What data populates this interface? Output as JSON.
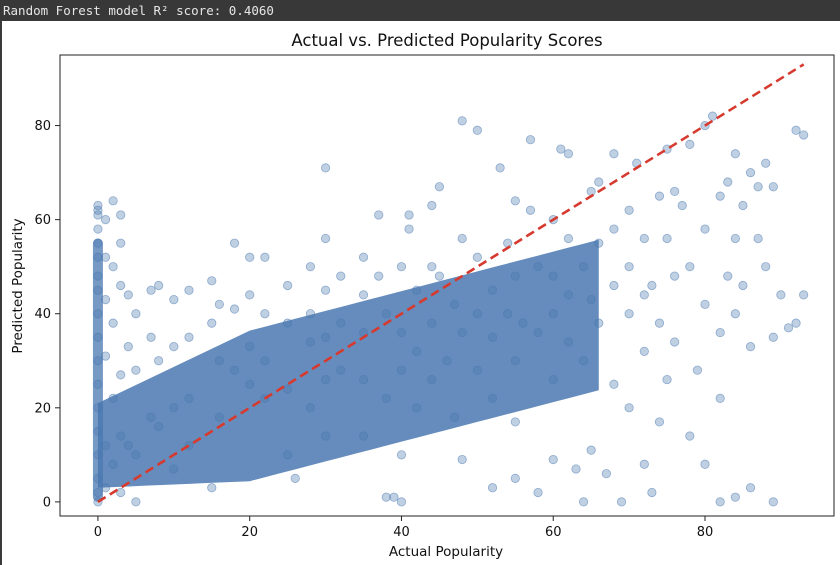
{
  "console": {
    "output_text": "Random Forest model R² score: 0.4060"
  },
  "colors": {
    "points": "#4a78b0",
    "reference_line": "#d63a2f",
    "console_bg": "#383838",
    "console_text": "#e6e6e6"
  },
  "chart_data": {
    "type": "scatter",
    "title": "Actual vs. Predicted Popularity Scores",
    "xlabel": "Actual Popularity",
    "ylabel": "Predicted Popularity",
    "xlim": [
      -5,
      97
    ],
    "ylim": [
      -3,
      95
    ],
    "xticks": [
      0,
      20,
      40,
      60,
      80
    ],
    "yticks": [
      0,
      20,
      40,
      60,
      80
    ],
    "grid": false,
    "point_alpha": 0.35,
    "reference_line": {
      "style": "dashed",
      "from": [
        0,
        0
      ],
      "to": [
        93,
        93
      ]
    },
    "series": [
      {
        "points": [
          [
            0,
            63
          ],
          [
            0,
            62
          ],
          [
            0,
            61
          ],
          [
            0,
            58
          ],
          [
            0,
            55
          ],
          [
            0,
            52
          ],
          [
            0,
            48
          ],
          [
            0,
            45
          ],
          [
            0,
            40
          ],
          [
            0,
            35
          ],
          [
            0,
            30
          ],
          [
            0,
            25
          ],
          [
            0,
            20
          ],
          [
            0,
            15
          ],
          [
            0,
            10
          ],
          [
            0,
            5
          ],
          [
            0,
            2
          ],
          [
            0,
            0
          ],
          [
            1,
            60
          ],
          [
            1,
            52
          ],
          [
            1,
            43
          ],
          [
            1,
            31
          ],
          [
            1,
            12
          ],
          [
            1,
            3
          ],
          [
            2,
            64
          ],
          [
            2,
            50
          ],
          [
            2,
            38
          ],
          [
            2,
            22
          ],
          [
            2,
            8
          ],
          [
            3,
            61
          ],
          [
            3,
            55
          ],
          [
            3,
            46
          ],
          [
            3,
            27
          ],
          [
            3,
            14
          ],
          [
            3,
            2
          ],
          [
            4,
            44
          ],
          [
            4,
            33
          ],
          [
            4,
            12
          ],
          [
            5,
            40
          ],
          [
            5,
            28
          ],
          [
            5,
            10
          ],
          [
            5,
            0
          ],
          [
            7,
            45
          ],
          [
            7,
            35
          ],
          [
            7,
            18
          ],
          [
            8,
            46
          ],
          [
            8,
            30
          ],
          [
            8,
            16
          ],
          [
            10,
            43
          ],
          [
            10,
            33
          ],
          [
            10,
            20
          ],
          [
            10,
            7
          ],
          [
            12,
            45
          ],
          [
            12,
            35
          ],
          [
            12,
            22
          ],
          [
            12,
            12
          ],
          [
            15,
            47
          ],
          [
            15,
            38
          ],
          [
            15,
            3
          ],
          [
            16,
            42
          ],
          [
            16,
            30
          ],
          [
            16,
            18
          ],
          [
            18,
            55
          ],
          [
            18,
            41
          ],
          [
            18,
            28
          ],
          [
            20,
            52
          ],
          [
            20,
            44
          ],
          [
            20,
            33
          ],
          [
            20,
            25
          ],
          [
            22,
            52
          ],
          [
            22,
            40
          ],
          [
            22,
            30
          ],
          [
            22,
            22
          ],
          [
            25,
            46
          ],
          [
            25,
            38
          ],
          [
            25,
            24
          ],
          [
            25,
            10
          ],
          [
            26,
            5
          ],
          [
            28,
            50
          ],
          [
            28,
            40
          ],
          [
            28,
            34
          ],
          [
            28,
            20
          ],
          [
            30,
            71
          ],
          [
            30,
            56
          ],
          [
            30,
            45
          ],
          [
            30,
            35
          ],
          [
            30,
            26
          ],
          [
            30,
            14
          ],
          [
            32,
            48
          ],
          [
            32,
            38
          ],
          [
            32,
            28
          ],
          [
            35,
            52
          ],
          [
            35,
            44
          ],
          [
            35,
            36
          ],
          [
            35,
            26
          ],
          [
            35,
            14
          ],
          [
            37,
            61
          ],
          [
            37,
            48
          ],
          [
            38,
            1
          ],
          [
            38,
            40
          ],
          [
            38,
            22
          ],
          [
            39,
            1
          ],
          [
            40,
            0
          ],
          [
            40,
            50
          ],
          [
            40,
            36
          ],
          [
            40,
            28
          ],
          [
            40,
            10
          ],
          [
            41,
            61
          ],
          [
            41,
            58
          ],
          [
            42,
            45
          ],
          [
            42,
            32
          ],
          [
            42,
            20
          ],
          [
            44,
            63
          ],
          [
            44,
            50
          ],
          [
            44,
            38
          ],
          [
            44,
            26
          ],
          [
            45,
            67
          ],
          [
            45,
            48
          ],
          [
            46,
            30
          ],
          [
            47,
            42
          ],
          [
            47,
            18
          ],
          [
            48,
            81
          ],
          [
            48,
            56
          ],
          [
            48,
            36
          ],
          [
            48,
            9
          ],
          [
            50,
            79
          ],
          [
            50,
            52
          ],
          [
            50,
            40
          ],
          [
            50,
            28
          ],
          [
            52,
            45
          ],
          [
            52,
            35
          ],
          [
            52,
            22
          ],
          [
            52,
            3
          ],
          [
            53,
            71
          ],
          [
            54,
            55
          ],
          [
            54,
            40
          ],
          [
            55,
            64
          ],
          [
            55,
            48
          ],
          [
            55,
            30
          ],
          [
            55,
            17
          ],
          [
            55,
            5
          ],
          [
            56,
            38
          ],
          [
            57,
            77
          ],
          [
            57,
            62
          ],
          [
            58,
            50
          ],
          [
            58,
            36
          ],
          [
            58,
            2
          ],
          [
            60,
            60
          ],
          [
            60,
            48
          ],
          [
            60,
            40
          ],
          [
            60,
            26
          ],
          [
            60,
            9
          ],
          [
            61,
            75
          ],
          [
            62,
            74
          ],
          [
            62,
            56
          ],
          [
            62,
            44
          ],
          [
            62,
            34
          ],
          [
            63,
            7
          ],
          [
            64,
            50
          ],
          [
            64,
            30
          ],
          [
            64,
            0
          ],
          [
            65,
            66
          ],
          [
            65,
            43
          ],
          [
            65,
            11
          ],
          [
            66,
            68
          ],
          [
            66,
            55
          ],
          [
            66,
            38
          ],
          [
            67,
            6
          ],
          [
            68,
            58
          ],
          [
            68,
            46
          ],
          [
            68,
            74
          ],
          [
            68,
            25
          ],
          [
            69,
            0
          ],
          [
            70,
            62
          ],
          [
            70,
            50
          ],
          [
            70,
            40
          ],
          [
            70,
            20
          ],
          [
            71,
            72
          ],
          [
            72,
            56
          ],
          [
            72,
            44
          ],
          [
            72,
            32
          ],
          [
            72,
            8
          ],
          [
            73,
            46
          ],
          [
            73,
            2
          ],
          [
            74,
            65
          ],
          [
            74,
            38
          ],
          [
            74,
            17
          ],
          [
            75,
            75
          ],
          [
            75,
            56
          ],
          [
            75,
            26
          ],
          [
            76,
            66
          ],
          [
            76,
            48
          ],
          [
            76,
            34
          ],
          [
            77,
            63
          ],
          [
            78,
            76
          ],
          [
            78,
            50
          ],
          [
            78,
            14
          ],
          [
            79,
            28
          ],
          [
            80,
            80
          ],
          [
            80,
            58
          ],
          [
            80,
            42
          ],
          [
            80,
            8
          ],
          [
            81,
            82
          ],
          [
            82,
            65
          ],
          [
            82,
            36
          ],
          [
            82,
            22
          ],
          [
            82,
            0
          ],
          [
            83,
            68
          ],
          [
            83,
            48
          ],
          [
            84,
            74
          ],
          [
            84,
            56
          ],
          [
            84,
            40
          ],
          [
            84,
            1
          ],
          [
            85,
            63
          ],
          [
            85,
            46
          ],
          [
            86,
            70
          ],
          [
            86,
            33
          ],
          [
            86,
            3
          ],
          [
            87,
            67
          ],
          [
            87,
            56
          ],
          [
            88,
            72
          ],
          [
            88,
            50
          ],
          [
            89,
            67
          ],
          [
            89,
            35
          ],
          [
            89,
            0
          ],
          [
            90,
            44
          ],
          [
            91,
            37
          ],
          [
            92,
            79
          ],
          [
            92,
            38
          ],
          [
            93,
            78
          ],
          [
            93,
            44
          ]
        ]
      }
    ]
  }
}
